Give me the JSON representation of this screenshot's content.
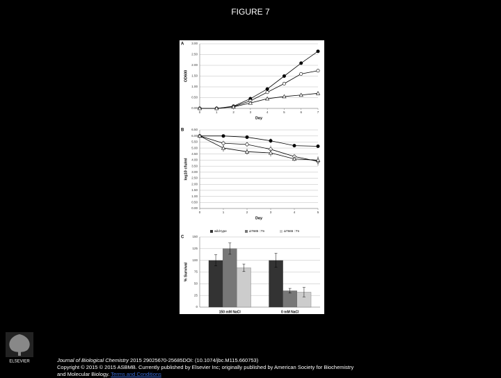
{
  "page": {
    "title": "FIGURE 7",
    "publisher": "ELSEVIER",
    "journal": "Journal of Biological Chemistry",
    "citation": " 2015 29025670-25685DOI: (10.1074/jbc.M115.660753)",
    "copyright": "Copyright © 2015 © 2015 ASBMB. Currently published by Elsevier Inc; originally published by American Society for Biochemistry and Molecular Biology.",
    "terms": "Terms and Conditions"
  },
  "chart_data": [
    {
      "type": "line",
      "label": "A",
      "xlabel": "Day",
      "ylabel": "OD600",
      "x": [
        0,
        1,
        2,
        3,
        4,
        5,
        6,
        7
      ],
      "xlim": [
        0,
        7
      ],
      "xticks": [
        0,
        1,
        2,
        3,
        4,
        5,
        6,
        7
      ],
      "ylim": [
        0,
        3
      ],
      "yticks": [
        {
          "value": 0,
          "label": "0.00"
        },
        {
          "value": 0.5,
          "label": "0.50"
        },
        {
          "value": 1,
          "label": "1.00"
        },
        {
          "value": 1.5,
          "label": "1.50"
        },
        {
          "value": 2,
          "label": "2.00"
        },
        {
          "value": 2.5,
          "label": "2.50"
        },
        {
          "value": 3,
          "label": "3.00"
        }
      ],
      "grid": true,
      "series": [
        {
          "color": "#000000",
          "marker": "circle",
          "filled": true,
          "values": [
            0,
            0,
            0.1,
            0.45,
            0.9,
            1.5,
            2.1,
            2.65
          ]
        },
        {
          "color": "#000000",
          "marker": "circle",
          "filled": false,
          "values": [
            0,
            0,
            0.08,
            0.35,
            0.75,
            1.15,
            1.6,
            1.75
          ]
        },
        {
          "color": "#000000",
          "marker": "triangle",
          "filled": false,
          "values": [
            0,
            0,
            0.07,
            0.25,
            0.45,
            0.55,
            0.62,
            0.7
          ]
        }
      ]
    },
    {
      "type": "line",
      "label": "B",
      "xlabel": "Day",
      "ylabel": "log10 cfu/ml",
      "x": [
        0,
        1,
        2,
        3,
        4,
        5
      ],
      "xlim": [
        0,
        5
      ],
      "xticks": [
        0,
        1,
        2,
        3,
        4,
        5
      ],
      "ylim": [
        0,
        6.5
      ],
      "yticks": [
        {
          "value": 0,
          "label": "0.00"
        },
        {
          "value": 0.5,
          "label": "0.50"
        },
        {
          "value": 1,
          "label": "1.00"
        },
        {
          "value": 1.5,
          "label": "1.50"
        },
        {
          "value": 2,
          "label": "2.00"
        },
        {
          "value": 2.5,
          "label": "2.50"
        },
        {
          "value": 3,
          "label": "3.00"
        },
        {
          "value": 3.5,
          "label": "3.50"
        },
        {
          "value": 4,
          "label": "4.00"
        },
        {
          "value": 4.5,
          "label": "4.50"
        },
        {
          "value": 5,
          "label": "5.00"
        },
        {
          "value": 5.5,
          "label": "5.50"
        },
        {
          "value": 6,
          "label": "6.00"
        },
        {
          "value": 6.5,
          "label": "6.50"
        }
      ],
      "grid": true,
      "series": [
        {
          "color": "#000000",
          "marker": "circle",
          "filled": true,
          "values": [
            6.0,
            6.0,
            5.9,
            5.6,
            5.2,
            5.15
          ],
          "errors": [
            0.15,
            0.1,
            0.15,
            0.2,
            0.1,
            0.15
          ]
        },
        {
          "color": "#000000",
          "marker": "circle",
          "filled": false,
          "values": [
            6.0,
            5.4,
            5.3,
            4.9,
            4.3,
            3.9
          ],
          "errors": [
            0.15,
            0.2,
            0.2,
            0.3,
            0.2,
            0.35
          ]
        },
        {
          "color": "#000000",
          "marker": "triangle",
          "filled": false,
          "values": [
            6.0,
            5.0,
            4.7,
            4.6,
            4.1,
            4.0
          ],
          "errors": [
            0.1,
            0.3,
            0.25,
            0.3,
            0.2,
            0.3
          ]
        }
      ]
    },
    {
      "type": "bar",
      "label": "C",
      "ylabel": "% Survival",
      "categories": [
        "150 mM NaCl",
        "0 mM NaCl"
      ],
      "ylim": [
        0,
        150
      ],
      "yticks": [
        0,
        25,
        50,
        75,
        100,
        125,
        150
      ],
      "grid": true,
      "series": [
        {
          "name": "wild-type",
          "color": "#333333",
          "values": [
            100,
            100
          ],
          "errors": [
            12,
            15
          ]
        },
        {
          "name": "ΔT685 ::Tn",
          "color": "#777777",
          "values": [
            125,
            35
          ],
          "errors": [
            12,
            5
          ]
        },
        {
          "name": "ΔT665 ::Tn",
          "color": "#cccccc",
          "values": [
            84,
            32
          ],
          "errors": [
            8,
            10
          ]
        }
      ]
    }
  ]
}
